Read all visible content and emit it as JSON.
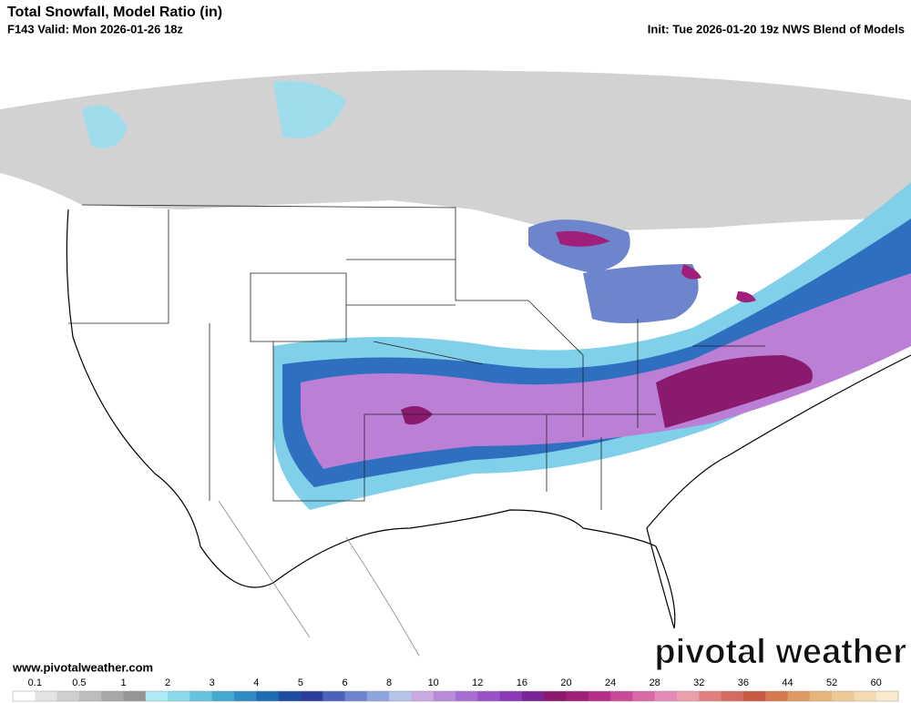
{
  "header": {
    "title": "Total Snowfall, Model Ratio (in)",
    "valid": "F143 Valid: Mon 2026-01-26 18z",
    "init": "Init: Tue 2026-01-20 19z NWS Blend of Models"
  },
  "footer": {
    "website": "www.pivotalweather.com",
    "logo": "pivotal weather"
  },
  "colorbar": {
    "labels": [
      0.1,
      0.5,
      1,
      2,
      3,
      4,
      5,
      6,
      8,
      10,
      12,
      16,
      20,
      24,
      28,
      32,
      36,
      44,
      52,
      60
    ],
    "colors": [
      "#ffffff",
      "#e4e4e4",
      "#cfcfcf",
      "#bdbdbd",
      "#a8a8a8",
      "#959595",
      "#aee9f5",
      "#8ad9ec",
      "#64c3df",
      "#43a9cf",
      "#2f8bc0",
      "#1f6cb0",
      "#1c4fa0",
      "#2a3d98",
      "#4a62b8",
      "#6d85cc",
      "#8ea4dc",
      "#b4c3ea",
      "#c9a8e3",
      "#b98ad9",
      "#a86dd0",
      "#9a52c4",
      "#8b3ab4",
      "#7a2595",
      "#8a1a6e",
      "#a01f7a",
      "#b52f8a",
      "#c94a9a",
      "#d96aa8",
      "#e48ab8",
      "#e9a0a8",
      "#e0807d",
      "#d56a5e",
      "#c85a45",
      "#d37a4e",
      "#de9a62",
      "#e7b47b",
      "#eec896",
      "#f3dab0",
      "#f8ebcb"
    ]
  }
}
